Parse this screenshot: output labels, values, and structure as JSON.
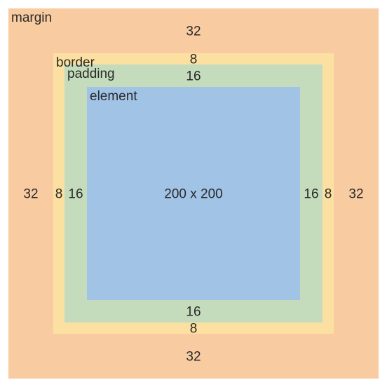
{
  "colors": {
    "margin": "#f8cba1",
    "border": "#fce0a1",
    "padding": "#c4dcbb",
    "element": "#a0c3e6",
    "text": "#2a2a2a"
  },
  "labels": {
    "margin": "margin",
    "border": "border",
    "padding": "padding",
    "element": "element"
  },
  "values": {
    "margin_top": "32",
    "margin_bottom": "32",
    "margin_left": "32",
    "margin_right": "32",
    "border_top": "8",
    "border_bottom": "8",
    "border_left": "8",
    "border_right": "8",
    "padding_top": "16",
    "padding_bottom": "16",
    "padding_left": "16",
    "padding_right": "16",
    "element_size": "200 x 200"
  }
}
